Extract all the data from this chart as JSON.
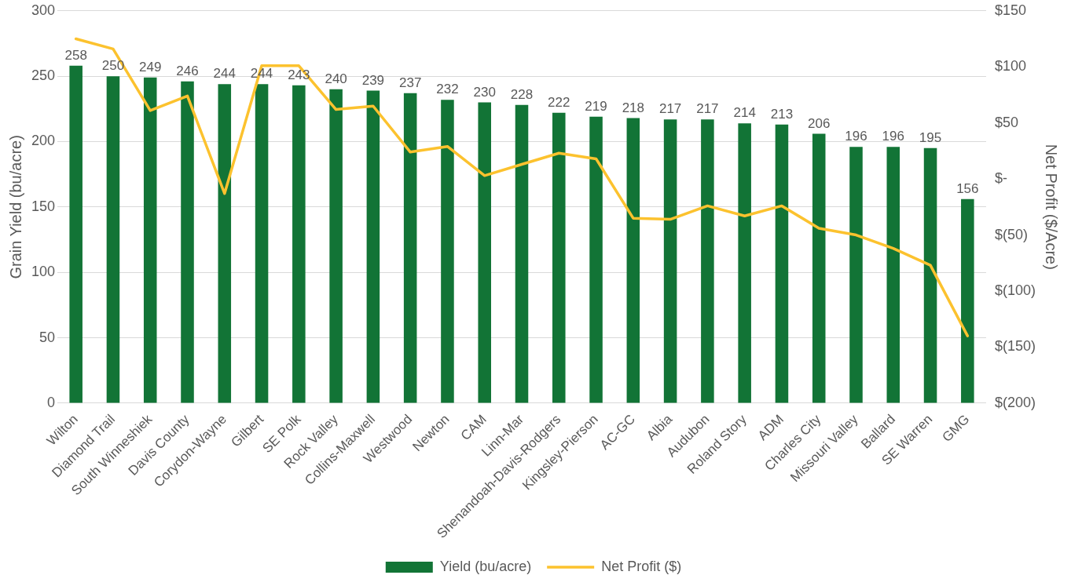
{
  "chart_data": {
    "type": "bar",
    "categories": [
      "Wilton",
      "Diamond Trail",
      "South Winneshiek",
      "Davis County",
      "Corydon-Wayne",
      "Gilbert",
      "SE Polk",
      "Rock Valley",
      "Collins-Maxwell",
      "Westwood",
      "Newton",
      "CAM",
      "Linn-Mar",
      "Shenandoah-Davis-Rodgers",
      "Kingsley-Pierson",
      "AC-GC",
      "Albia",
      "Audubon",
      "Roland Story",
      "ADM",
      "Charles City",
      "Missouri Valley",
      "Ballard",
      "SE Warren",
      "GMG"
    ],
    "series": [
      {
        "name": "Yield (bu/acre)",
        "color": "#127436",
        "values": [
          258,
          250,
          249,
          246,
          244,
          244,
          243,
          240,
          239,
          237,
          232,
          230,
          228,
          222,
          219,
          218,
          217,
          217,
          214,
          213,
          206,
          196,
          196,
          195,
          156
        ],
        "value_labels": [
          "258",
          "250",
          "249",
          "246",
          "244",
          "244",
          "243",
          "240",
          "239",
          "237",
          "232",
          "230",
          "228",
          "222",
          "219",
          "218",
          "217",
          "217",
          "214",
          "213",
          "206",
          "196",
          "196",
          "195",
          "156"
        ]
      },
      {
        "name": "Net Profit ($)",
        "type": "line",
        "axis": "y2",
        "color": "#fcc22e",
        "values": [
          125,
          116,
          61,
          74,
          -13,
          101,
          101,
          62,
          65,
          24,
          29,
          3,
          13,
          23,
          18,
          -35,
          -36,
          -24,
          -33,
          -24,
          -44,
          -50,
          -62,
          -77,
          -140
        ]
      }
    ],
    "ylabel": "Grain Yield (bu/acre)",
    "y2label": "Net Profit ($/Acre)",
    "ylim": [
      0,
      300
    ],
    "yticks": [
      0,
      50,
      100,
      150,
      200,
      250,
      300
    ],
    "y2lim": [
      -200,
      150
    ],
    "y2ticks": [
      {
        "value": -200,
        "label": "$(200)"
      },
      {
        "value": -150,
        "label": "$(150)"
      },
      {
        "value": -100,
        "label": "$(100)"
      },
      {
        "value": -50,
        "label": "$(50)"
      },
      {
        "value": 0,
        "label": "$-"
      },
      {
        "value": 50,
        "label": "$50"
      },
      {
        "value": 100,
        "label": "$100"
      },
      {
        "value": 150,
        "label": "$150"
      }
    ],
    "grid": "y",
    "legend": "bottom",
    "marker": "none",
    "line_style": "solid"
  }
}
